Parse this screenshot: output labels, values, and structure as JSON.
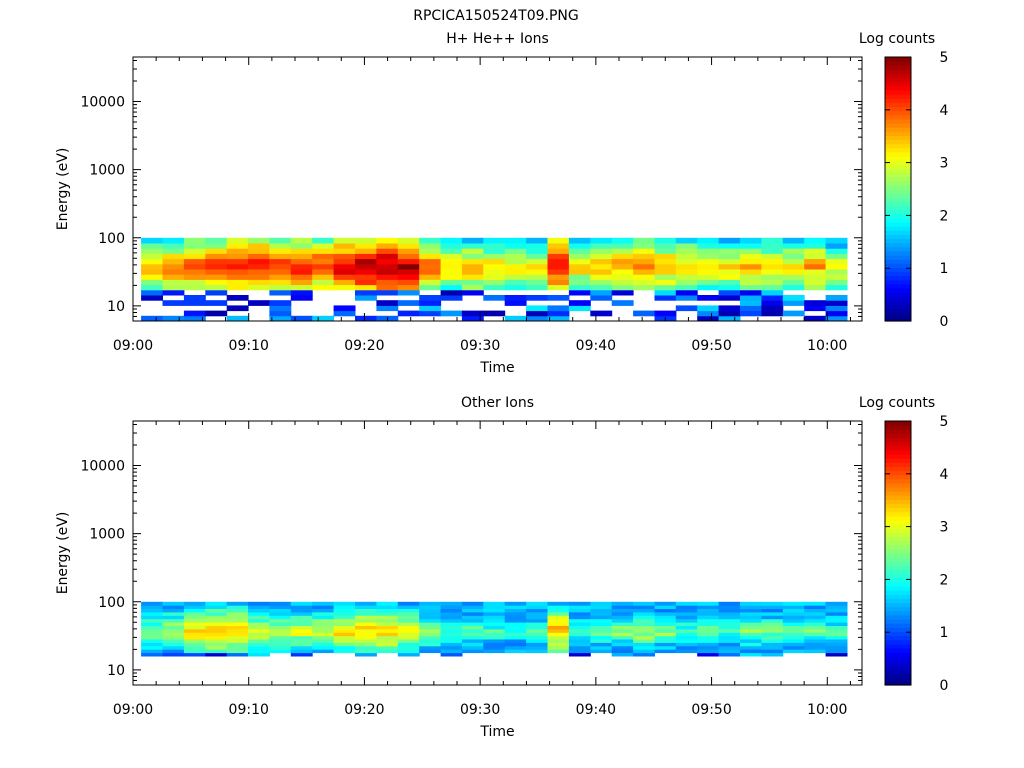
{
  "figure_title": "RPCICA150524T09.PNG",
  "chart_data": [
    {
      "type": "heatmap",
      "title": "H+ He++ Ions",
      "xlabel": "Time",
      "ylabel": "Energy (eV)",
      "y_scale": "log",
      "ylim": [
        6,
        45000
      ],
      "xlim_minutes": [
        0,
        63
      ],
      "x_ticks": [
        "09:00",
        "09:10",
        "09:20",
        "09:30",
        "09:40",
        "09:50",
        "10:00"
      ],
      "y_ticks": [
        "10",
        "100",
        "1000",
        "10000"
      ],
      "colorbar": {
        "label": "Log counts",
        "range": [
          0,
          5
        ],
        "ticks": [
          "0",
          "1",
          "2",
          "3",
          "4",
          "5"
        ],
        "colormap": "jet"
      },
      "energy_range_ev": [
        6,
        100
      ],
      "time_start_minutes": 0.7,
      "time_end_minutes": 61.7,
      "column_peak_log_counts": [
        3.6,
        3.8,
        4.1,
        4.3,
        4.5,
        4.4,
        4.3,
        4.4,
        4.2,
        4.6,
        4.8,
        4.9,
        4.9,
        4.0,
        3.4,
        3.6,
        3.4,
        3.3,
        3.4,
        4.5,
        3.4,
        3.6,
        3.7,
        4.0,
        3.7,
        3.5,
        3.5,
        3.4,
        3.6,
        3.6,
        3.4,
        3.7,
        3.2
      ]
    },
    {
      "type": "heatmap",
      "title": "Other Ions",
      "xlabel": "Time",
      "ylabel": "Energy (eV)",
      "y_scale": "log",
      "ylim": [
        6,
        45000
      ],
      "xlim_minutes": [
        0,
        63
      ],
      "x_ticks": [
        "09:00",
        "09:10",
        "09:20",
        "09:30",
        "09:40",
        "09:50",
        "10:00"
      ],
      "y_ticks": [
        "10",
        "100",
        "1000",
        "10000"
      ],
      "colorbar": {
        "label": "Log counts",
        "range": [
          0,
          5
        ],
        "ticks": [
          "0",
          "1",
          "2",
          "3",
          "4",
          "5"
        ],
        "colormap": "jet"
      },
      "energy_range_ev": [
        16,
        100
      ],
      "time_start_minutes": 0.7,
      "time_end_minutes": 61.7,
      "column_peak_log_counts": [
        2.7,
        2.9,
        3.3,
        3.5,
        3.6,
        3.0,
        2.9,
        3.0,
        2.9,
        3.3,
        3.4,
        3.4,
        3.3,
        2.6,
        2.3,
        2.4,
        2.3,
        2.2,
        2.4,
        3.5,
        2.3,
        2.5,
        2.6,
        2.9,
        2.6,
        2.4,
        2.5,
        2.3,
        2.6,
        2.6,
        2.3,
        2.5,
        2.4
      ]
    }
  ]
}
